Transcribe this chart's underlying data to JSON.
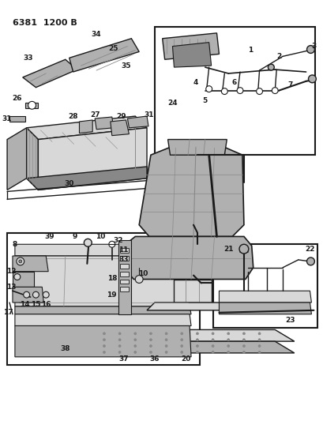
{
  "title": "6381  1200 B",
  "bg_color": "#ffffff",
  "lc": "#1a1a1a",
  "tc": "#1a1a1a",
  "fig_width": 4.1,
  "fig_height": 5.33,
  "dpi": 100,
  "gray_light": "#d8d8d8",
  "gray_mid": "#b0b0b0",
  "gray_dark": "#888888"
}
